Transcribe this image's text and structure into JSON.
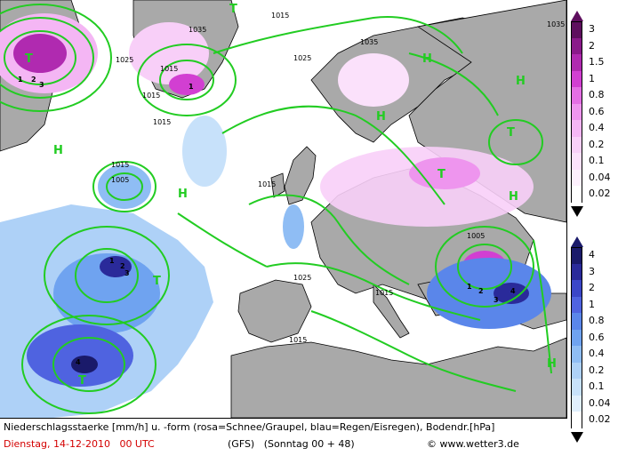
{
  "map": {
    "pressure_labels": [
      "1035",
      "1015",
      "1025",
      "1015",
      "1025",
      "1035",
      "1015",
      "1015",
      "1005",
      "1015",
      "1025",
      "1015",
      "1015",
      "1015",
      "1005",
      "1035"
    ],
    "highs": [
      "H",
      "H",
      "H",
      "H",
      "H",
      "H",
      "H"
    ],
    "lows": [
      "T",
      "T",
      "T",
      "T",
      "T",
      "T"
    ],
    "precip_values": [
      "1",
      "2",
      "3",
      "1",
      "1",
      "2",
      "3",
      "4",
      "1",
      "2",
      "3",
      "4"
    ],
    "colors": {
      "isobar": "#22cc22",
      "land": "#a9a9a9",
      "sea": "#ffffff",
      "coast": "#000000",
      "snow_light": "#f7cdf7",
      "snow_mid": "#e777e7",
      "snow_heavy": "#b000b0",
      "rain_light": "#cfe8fa",
      "rain_mid": "#6fa8ef",
      "rain_heavy": "#1f3fc0"
    }
  },
  "snow_scale": {
    "title": "rosa=Schnee/Graupel",
    "labels": [
      "3",
      "2",
      "1.5",
      "1",
      "0.8",
      "0.6",
      "0.4",
      "0.2",
      "0.1",
      "0.04",
      "0.02"
    ],
    "colors": [
      "#5e0f5e",
      "#8a1a8a",
      "#b02ab0",
      "#d23fd2",
      "#e46fe4",
      "#ee95ee",
      "#f4b6f4",
      "#f8cff8",
      "#fbe1fb",
      "#fdf0fd",
      "#ffffff"
    ]
  },
  "rain_scale": {
    "title": "blau=Regen/Eisregen",
    "labels": [
      "4",
      "3",
      "2",
      "1",
      "0.8",
      "0.6",
      "0.4",
      "0.2",
      "0.1",
      "0.04",
      "0.02"
    ],
    "colors": [
      "#1a1a6a",
      "#2a2a9a",
      "#3b46c8",
      "#4f63e0",
      "#5a86ea",
      "#6fa3f0",
      "#8fbdf4",
      "#aed1f7",
      "#c7e1fa",
      "#e0effd",
      "#ffffff"
    ]
  },
  "caption": {
    "line1": "Niederschlagsstaerke [mm/h] u. -form (rosa=Schnee/Graupel, blau=Regen/Eisregen), Bodendr.[hPa]",
    "date": "Dienstag, 14-12-2010   00 UTC",
    "model": "(GFS)   (Sonntag 00 + 48)",
    "copyright": "© www.wetter3.de"
  }
}
